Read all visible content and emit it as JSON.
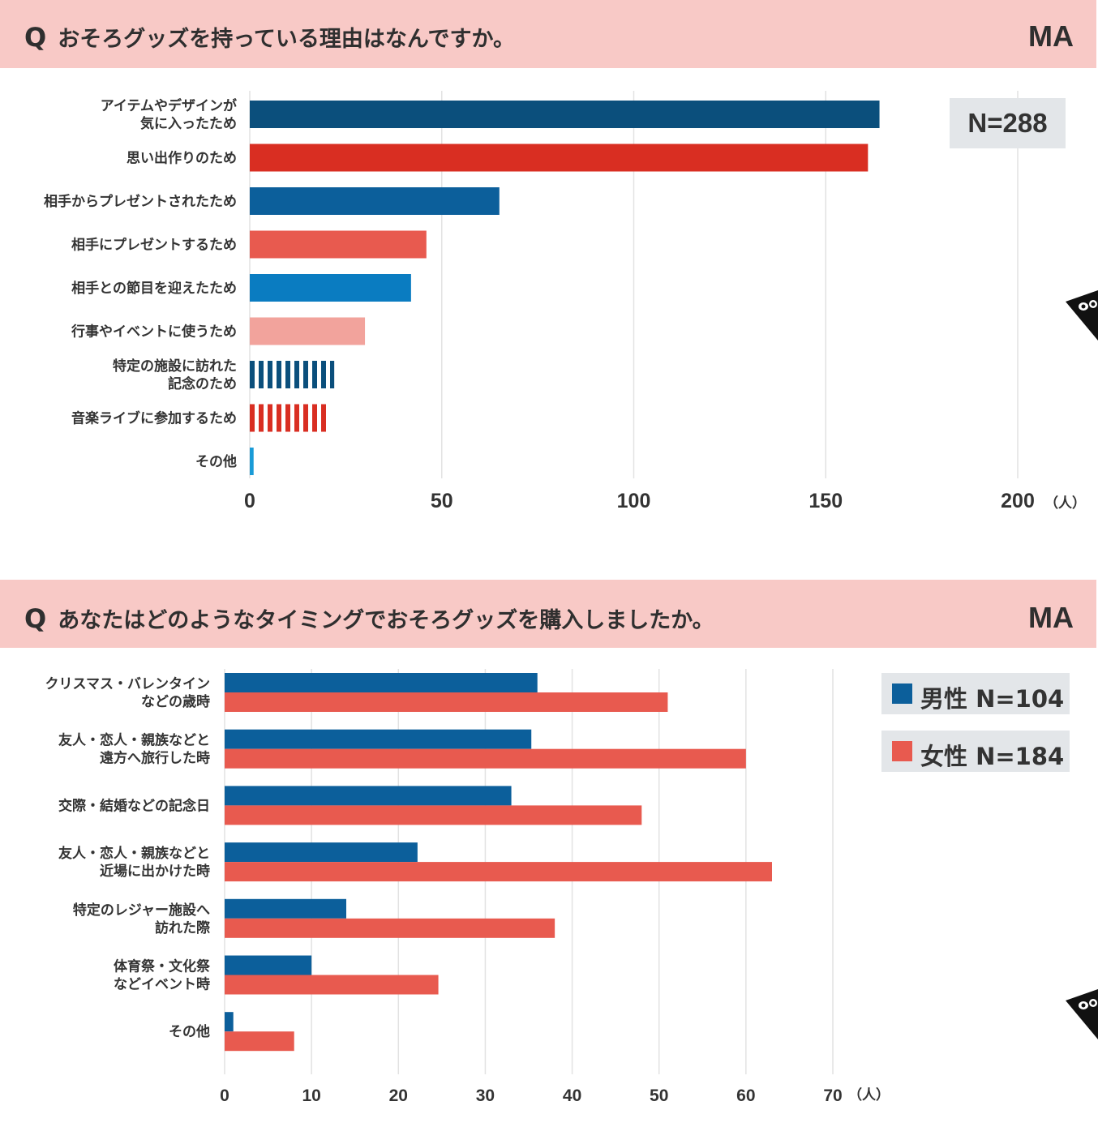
{
  "question1": {
    "q_letter": "Q",
    "text": "おそろグッズを持っている理由はなんですか。",
    "tag": "MA",
    "n_label": "N=288"
  },
  "question2": {
    "q_letter": "Q",
    "text": "あなたはどのようなタイミングでおそろグッズを購入しましたか。",
    "tag": "MA",
    "legend": [
      {
        "label": "男性 N=104",
        "color": "#0c5f9b"
      },
      {
        "label": "女性 N=184",
        "color": "#e85a4f"
      }
    ]
  },
  "chart_data": [
    {
      "type": "bar",
      "orientation": "horizontal",
      "title": "おそろグッズを持っている理由はなんですか。",
      "categories": [
        [
          "アイテムやデザインが",
          "気に入ったため"
        ],
        [
          "思い出作りのため"
        ],
        [
          "相手からプレゼントされたため"
        ],
        [
          "相手にプレゼントするため"
        ],
        [
          "相手との節目を迎えたため"
        ],
        [
          "行事やイベントに使うため"
        ],
        [
          "特定の施設に訪れた",
          "記念のため"
        ],
        [
          "音楽ライブに参加するため"
        ],
        [
          "その他"
        ]
      ],
      "values": [
        164,
        161,
        65,
        46,
        42,
        30,
        22,
        20,
        1
      ],
      "colors": [
        "#0b4f7c",
        "#d92e22",
        "#0c5f9b",
        "#e85a4f",
        "#0a7cc1",
        "#f2a39c",
        "#0b4f7c",
        "#d92e22",
        "#1a9bd7"
      ],
      "patterns": [
        "solid",
        "solid",
        "solid",
        "solid",
        "solid",
        "solid",
        "striped",
        "striped",
        "solid"
      ],
      "xlim": [
        0,
        200
      ],
      "xticks": [
        0,
        50,
        100,
        150,
        200
      ],
      "unit": "（人）",
      "grid": true
    },
    {
      "type": "bar",
      "orientation": "horizontal",
      "title": "あなたはどのようなタイミングでおそろグッズを購入しましたか。",
      "categories": [
        [
          "クリスマス・バレンタイン",
          "などの歳時"
        ],
        [
          "友人・恋人・親族などと",
          "遠方へ旅行した時"
        ],
        [
          "交際・結婚などの記念日"
        ],
        [
          "友人・恋人・親族などと",
          "近場に出かけた時"
        ],
        [
          "特定のレジャー施設へ",
          "訪れた際"
        ],
        [
          "体育祭・文化祭",
          "などイベント時"
        ],
        [
          "その他"
        ]
      ],
      "series": [
        {
          "name": "男性 N=104",
          "color": "#0c5f9b",
          "values": [
            36,
            35.3,
            33,
            22.2,
            14,
            10,
            1
          ]
        },
        {
          "name": "女性 N=184",
          "color": "#e85a4f",
          "values": [
            51,
            60,
            48,
            63,
            38,
            24.6,
            8
          ]
        }
      ],
      "xlim": [
        0,
        70
      ],
      "xticks": [
        0,
        10,
        20,
        30,
        40,
        50,
        60,
        70
      ],
      "unit": "（人）",
      "grid": true,
      "legend_position": "top-right"
    }
  ]
}
